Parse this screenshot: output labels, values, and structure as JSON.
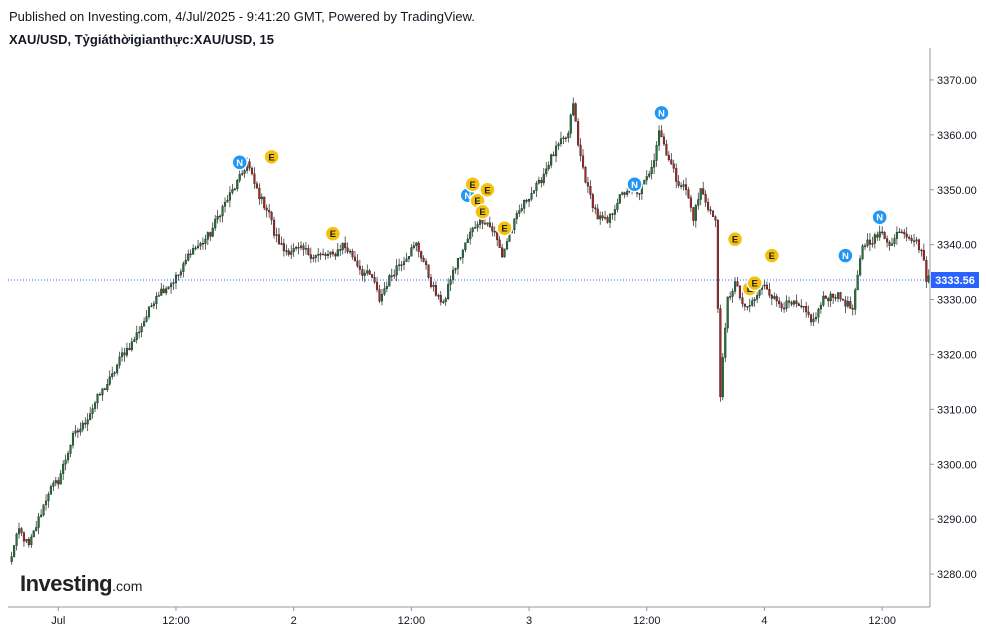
{
  "header": {
    "published": "Published on Investing.com, 4/Jul/2025 - 9:41:20 GMT, Powered by TradingView.",
    "symbol": "XAU/USD, Tỷgiáthờigianthực:XAU/USD, 15"
  },
  "logo": {
    "main": "Investing",
    "suffix": ".com"
  },
  "colors": {
    "up": "#26a69a",
    "down": "#ef5350",
    "candle_up": "#1b7a3a",
    "candle_down": "#b22222",
    "price_line": "#2962ff",
    "price_label_bg": "#2962ff",
    "news_badge": "#2196f3",
    "earnings_badge": "#f4c20d"
  },
  "chart_data": {
    "type": "candlestick",
    "instrument": "XAU/USD",
    "interval": "15",
    "ylim": [
      3274,
      3374
    ],
    "y_ticks": [
      3280,
      3290,
      3300,
      3310,
      3320,
      3330,
      3340,
      3350,
      3360,
      3370
    ],
    "y_tick_labels": [
      "3280.00",
      "3290.00",
      "3300.00",
      "3310.00",
      "3320.00",
      "3330.00",
      "3340.00",
      "3350.00",
      "3360.00",
      "3370.00"
    ],
    "x_ticks": [
      {
        "label": "Jul",
        "bar": 20
      },
      {
        "label": "12:00",
        "bar": 68
      },
      {
        "label": "2",
        "bar": 116
      },
      {
        "label": "12:00",
        "bar": 164
      },
      {
        "label": "3",
        "bar": 212
      },
      {
        "label": "12:00",
        "bar": 260
      },
      {
        "label": "4",
        "bar": 308
      },
      {
        "label": "12:00",
        "bar": 356
      }
    ],
    "last_price": 3333.56,
    "last_price_label": "3333.56",
    "close_path": [
      [
        0,
        3282
      ],
      [
        4,
        3288
      ],
      [
        8,
        3285
      ],
      [
        12,
        3290
      ],
      [
        16,
        3295
      ],
      [
        20,
        3297
      ],
      [
        26,
        3305
      ],
      [
        30,
        3307
      ],
      [
        36,
        3312
      ],
      [
        42,
        3316
      ],
      [
        46,
        3320
      ],
      [
        50,
        3322
      ],
      [
        56,
        3327
      ],
      [
        60,
        3331
      ],
      [
        66,
        3333
      ],
      [
        70,
        3335
      ],
      [
        74,
        3339
      ],
      [
        78,
        3340
      ],
      [
        82,
        3342
      ],
      [
        86,
        3346
      ],
      [
        90,
        3349
      ],
      [
        94,
        3352
      ],
      [
        97,
        3355
      ],
      [
        100,
        3351
      ],
      [
        103,
        3348
      ],
      [
        106,
        3346
      ],
      [
        108,
        3342
      ],
      [
        112,
        3339
      ],
      [
        116,
        3339
      ],
      [
        120,
        3339
      ],
      [
        124,
        3338
      ],
      [
        128,
        3338
      ],
      [
        132,
        3338
      ],
      [
        136,
        3340
      ],
      [
        140,
        3338
      ],
      [
        144,
        3335
      ],
      [
        148,
        3334
      ],
      [
        151,
        3330
      ],
      [
        154,
        3333
      ],
      [
        158,
        3336
      ],
      [
        162,
        3338
      ],
      [
        166,
        3340
      ],
      [
        169,
        3337
      ],
      [
        172,
        3333
      ],
      [
        175,
        3330
      ],
      [
        178,
        3330
      ],
      [
        180,
        3334
      ],
      [
        184,
        3338
      ],
      [
        188,
        3342
      ],
      [
        192,
        3345
      ],
      [
        195,
        3344
      ],
      [
        198,
        3342
      ],
      [
        201,
        3338
      ],
      [
        204,
        3342
      ],
      [
        208,
        3346
      ],
      [
        212,
        3349
      ],
      [
        216,
        3351
      ],
      [
        220,
        3355
      ],
      [
        224,
        3358
      ],
      [
        228,
        3360
      ],
      [
        230,
        3366
      ],
      [
        232,
        3358
      ],
      [
        236,
        3350
      ],
      [
        240,
        3345
      ],
      [
        244,
        3344
      ],
      [
        248,
        3348
      ],
      [
        252,
        3350
      ],
      [
        256,
        3349
      ],
      [
        260,
        3352
      ],
      [
        263,
        3356
      ],
      [
        265,
        3361
      ],
      [
        268,
        3357
      ],
      [
        272,
        3352
      ],
      [
        276,
        3350
      ],
      [
        279,
        3345
      ],
      [
        282,
        3350
      ],
      [
        285,
        3347
      ],
      [
        288,
        3344
      ],
      [
        290,
        3313
      ],
      [
        293,
        3330
      ],
      [
        296,
        3333
      ],
      [
        300,
        3328
      ],
      [
        304,
        3330
      ],
      [
        308,
        3333
      ],
      [
        312,
        3330
      ],
      [
        316,
        3329
      ],
      [
        320,
        3329
      ],
      [
        324,
        3328
      ],
      [
        328,
        3326
      ],
      [
        332,
        3330
      ],
      [
        336,
        3331
      ],
      [
        340,
        3330
      ],
      [
        344,
        3328
      ],
      [
        346,
        3334
      ],
      [
        348,
        3340
      ],
      [
        352,
        3341
      ],
      [
        356,
        3342
      ],
      [
        360,
        3340
      ],
      [
        363,
        3343
      ],
      [
        366,
        3342
      ],
      [
        369,
        3341
      ],
      [
        372,
        3339
      ],
      [
        374,
        3334
      ]
    ],
    "event_markers": [
      {
        "letter": "N",
        "bar": 94,
        "price": 3355
      },
      {
        "letter": "E",
        "bar": 107,
        "price": 3356
      },
      {
        "letter": "E",
        "bar": 132,
        "price": 3342
      },
      {
        "letter": "N",
        "bar": 187,
        "price": 3349
      },
      {
        "letter": "E",
        "bar": 189,
        "price": 3351
      },
      {
        "letter": "E",
        "bar": 191,
        "price": 3348
      },
      {
        "letter": "E",
        "bar": 195,
        "price": 3350
      },
      {
        "letter": "E",
        "bar": 193,
        "price": 3346
      },
      {
        "letter": "E",
        "bar": 202,
        "price": 3343
      },
      {
        "letter": "N",
        "bar": 255,
        "price": 3351
      },
      {
        "letter": "N",
        "bar": 266,
        "price": 3364
      },
      {
        "letter": "E",
        "bar": 296,
        "price": 3341
      },
      {
        "letter": "E",
        "bar": 302,
        "price": 3332
      },
      {
        "letter": "E",
        "bar": 304,
        "price": 3333
      },
      {
        "letter": "E",
        "bar": 311,
        "price": 3338
      },
      {
        "letter": "N",
        "bar": 341,
        "price": 3338
      },
      {
        "letter": "N",
        "bar": 355,
        "price": 3345
      }
    ]
  }
}
